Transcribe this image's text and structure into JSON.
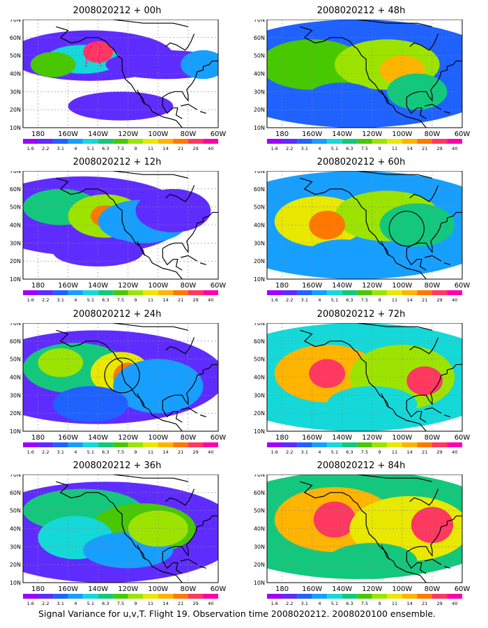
{
  "caption": "Signal Variance for u,v,T. Flight 19. Observation time 2008020212. 2008020100 ensemble.",
  "colors": [
    "#9f00ff",
    "#5f2cff",
    "#1f62ff",
    "#179fff",
    "#15d8d8",
    "#13c87c",
    "#48c800",
    "#9ce400",
    "#e8e800",
    "#ffb400",
    "#ff7800",
    "#ff3860",
    "#ff00aa"
  ],
  "colorbar_labels": [
    "1.6",
    "2.2",
    "3.1",
    "4",
    "5.1",
    "6.3",
    "7.5",
    "9",
    "11",
    "14",
    "21",
    "29",
    "40"
  ],
  "lat_labels": [
    "70N",
    "60N",
    "50N",
    "40N",
    "30N",
    "20N",
    "10N"
  ],
  "lon_labels": [
    "180",
    "160W",
    "140W",
    "120W",
    "100W",
    "80W",
    "60W"
  ],
  "panels": [
    {
      "title": "2008020212 + 00h",
      "lead": 0
    },
    {
      "title": "2008020212 + 12h",
      "lead": 12
    },
    {
      "title": "2008020212 + 24h",
      "lead": 24
    },
    {
      "title": "2008020212 + 36h",
      "lead": 36
    },
    {
      "title": "2008020212 + 48h",
      "lead": 48
    },
    {
      "title": "2008020212 + 60h",
      "lead": 60
    },
    {
      "title": "2008020212 + 72h",
      "lead": 72
    },
    {
      "title": "2008020212 + 84h",
      "lead": 84
    }
  ]
}
